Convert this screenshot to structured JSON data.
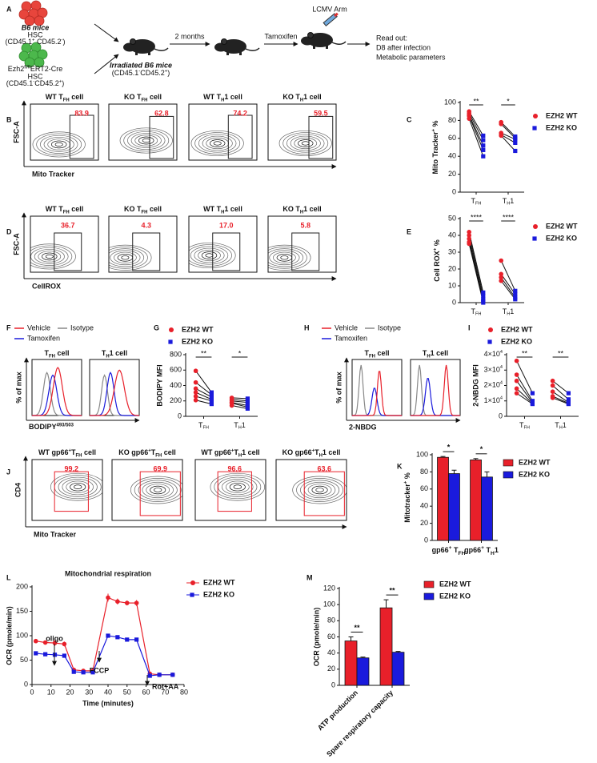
{
  "panel_letters": [
    "A",
    "B",
    "C",
    "D",
    "E",
    "F",
    "G",
    "H",
    "I",
    "J",
    "K",
    "L",
    "M"
  ],
  "schematic": {
    "donors": [
      {
        "name": "B6 mice",
        "lines": [
          "HSC",
          [
            "(CD45.1",
            {
              "sup": "+"
            },
            " CD45.2",
            {
              "sup": "-"
            },
            ")"
          ]
        ]
      },
      {
        "name": [
          "Ezh2",
          {
            "sup": "fl/fl"
          },
          "ERT2-Cre"
        ],
        "lines": [
          "HSC",
          [
            "(CD45.1",
            {
              "sup": "-"
            },
            "CD45.2",
            {
              "sup": "+"
            },
            ")"
          ]
        ]
      }
    ],
    "recipient": {
      "name": "Irradiated B6 mice",
      "line": [
        "(CD45.1",
        {
          "sup": "-"
        },
        "CD45.2",
        {
          "sup": "+"
        },
        ")"
      ]
    },
    "steps": [
      "2 months",
      "Tamoxifen"
    ],
    "infection": "LCMV Arm",
    "readout": [
      "Read out:",
      "D8 after infection",
      "Metabolic parameters"
    ]
  },
  "flow_panels": [
    {
      "y_label": "FSC-A",
      "x_label": "Mito Tracker",
      "gate_color": "#222222",
      "plots": [
        {
          "title": [
            "WT T",
            {
              "sub": "FH"
            },
            " cell"
          ],
          "percent": "83.9"
        },
        {
          "title": [
            "KO T",
            {
              "sub": "FH"
            },
            " cell"
          ],
          "percent": "62.8"
        },
        {
          "title": [
            "WT T",
            {
              "sub": "H"
            },
            "1 cell"
          ],
          "percent": "74.2"
        },
        {
          "title": [
            "KO T",
            {
              "sub": "H"
            },
            "1 cell"
          ],
          "percent": "59.5"
        }
      ]
    },
    {
      "y_label": "FSC-A",
      "x_label": "CellROX",
      "gate_color": "#222222",
      "plots": [
        {
          "title": [
            "WT T",
            {
              "sub": "FH"
            },
            " cell"
          ],
          "percent": "36.7"
        },
        {
          "title": [
            "KO T",
            {
              "sub": "FH"
            },
            " cell"
          ],
          "percent": "4.3"
        },
        {
          "title": [
            "WT T",
            {
              "sub": "H"
            },
            "1 cell"
          ],
          "percent": "17.0"
        },
        {
          "title": [
            "KO T",
            {
              "sub": "H"
            },
            "1 cell"
          ],
          "percent": "5.8"
        }
      ]
    },
    {
      "y_label": "CD4",
      "x_label": "Mito Tracker",
      "gate_color": "#e8202a",
      "plots": [
        {
          "title": [
            "WT gp66",
            {
              "sup": "+"
            },
            "T",
            {
              "sub": "FH"
            },
            " cell"
          ],
          "percent": "99.2"
        },
        {
          "title": [
            "KO gp66",
            {
              "sup": "+"
            },
            "T",
            {
              "sub": "FH"
            },
            " cell"
          ],
          "percent": "69.9"
        },
        {
          "title": [
            "WT gp66",
            {
              "sup": "+"
            },
            "T",
            {
              "sub": "H"
            },
            "1 cell"
          ],
          "percent": "96.6"
        },
        {
          "title": [
            "KO gp66",
            {
              "sup": "+"
            },
            "T",
            {
              "sub": "H"
            },
            "1 cell"
          ],
          "percent": "63.6"
        }
      ]
    }
  ],
  "histogram_panels": [
    {
      "legend": [
        {
          "name": "Vehicle",
          "color": "#e8202a"
        },
        {
          "name": "Isotype",
          "color": "#888888"
        },
        {
          "name": "Tamoxifen",
          "color": "#1a1adc"
        }
      ],
      "titles": [
        [
          "T",
          {
            "sub": "FH"
          },
          " cell"
        ],
        [
          "T",
          {
            "sub": "H"
          },
          "1 cell"
        ]
      ],
      "y_label": "% of max",
      "x_label": [
        "BODIPY",
        {
          "sup": "493/503"
        }
      ]
    },
    {
      "legend": [
        {
          "name": "Vehicle",
          "color": "#e8202a"
        },
        {
          "name": "Isotype",
          "color": "#888888"
        },
        {
          "name": "Tamoxifen",
          "color": "#1a1adc"
        }
      ],
      "titles": [
        [
          "T",
          {
            "sub": "FH"
          },
          " cell"
        ],
        [
          "T",
          {
            "sub": "H"
          },
          "1 cell"
        ]
      ],
      "y_label": "% of max",
      "x_label": "2-NBDG"
    }
  ],
  "chart_data": [
    {
      "type": "paired",
      "y_label": [
        "Mito Tracker",
        {
          "sup": "+"
        },
        " %"
      ],
      "categories": [
        [
          "T",
          {
            "sub": "FH"
          }
        ],
        [
          "T",
          {
            "sub": "H"
          },
          "1"
        ]
      ],
      "significance": [
        "**",
        "*"
      ],
      "ylim": [
        0,
        100
      ],
      "yticks": [
        0,
        20,
        40,
        60,
        80,
        100
      ],
      "series": [
        {
          "name": "EZH2 WT",
          "color": "#e8202a",
          "marker": "circle",
          "values": [
            [
              90,
              88,
              86,
              85,
              82
            ],
            [
              78,
              76,
              66,
              64,
              63
            ]
          ]
        },
        {
          "name": "EZH2 KO",
          "color": "#1a1adc",
          "marker": "square",
          "values": [
            [
              63,
              58,
              52,
              47,
              40
            ],
            [
              62,
              60,
              59,
              55,
              46
            ]
          ]
        }
      ]
    },
    {
      "type": "paired",
      "y_label": [
        "Cell ROX",
        {
          "sup": "+"
        },
        " %"
      ],
      "categories": [
        [
          "T",
          {
            "sub": "FH"
          }
        ],
        [
          "T",
          {
            "sub": "H"
          },
          "1"
        ]
      ],
      "significance": [
        "****",
        "****"
      ],
      "ylim": [
        0,
        50
      ],
      "yticks": [
        0,
        10,
        20,
        30,
        40,
        50
      ],
      "series": [
        {
          "name": "EZH2 WT",
          "color": "#e8202a",
          "marker": "circle",
          "values": [
            [
              42,
              40,
              38,
              36,
              35
            ],
            [
              25,
              17,
              15,
              13
            ]
          ]
        },
        {
          "name": "EZH2 KO",
          "color": "#1a1adc",
          "marker": "square",
          "values": [
            [
              6,
              4,
              2,
              1,
              0
            ],
            [
              7,
              5,
              3,
              2
            ]
          ]
        }
      ]
    },
    {
      "type": "paired",
      "y_label": "BODIPY MFI",
      "categories": [
        [
          "T",
          {
            "sub": "FH"
          }
        ],
        [
          "T",
          {
            "sub": "H"
          },
          "1"
        ]
      ],
      "significance": [
        "**",
        "*"
      ],
      "ylim": [
        0,
        800
      ],
      "yticks": [
        0,
        200,
        400,
        600,
        800
      ],
      "series": [
        {
          "name": "EZH2 WT",
          "color": "#e8202a",
          "marker": "circle",
          "values": [
            [
              590,
              440,
              360,
              310,
              260,
              210
            ],
            [
              240,
              220,
              200,
              180,
              170,
              140
            ]
          ]
        },
        {
          "name": "EZH2 KO",
          "color": "#1a1adc",
          "marker": "square",
          "values": [
            [
              310,
              280,
              250,
              220,
              200,
              160
            ],
            [
              230,
              200,
              180,
              140,
              120,
              100
            ]
          ]
        }
      ]
    },
    {
      "type": "paired",
      "y_label": "2-NBDG MFI",
      "categories": [
        [
          "T",
          {
            "sub": "FH"
          }
        ],
        [
          "T",
          {
            "sub": "H"
          },
          "1"
        ]
      ],
      "significance": [
        "**",
        "**"
      ],
      "ylim": [
        0,
        40000
      ],
      "yticks": [
        0,
        {
          "value": 10000,
          "label": [
            "1×10",
            {
              "sup": "4"
            }
          ]
        },
        {
          "value": 20000,
          "label": [
            "2×10",
            {
              "sup": "4"
            }
          ]
        },
        {
          "value": 30000,
          "label": [
            "3×10",
            {
              "sup": "4"
            }
          ]
        },
        {
          "value": 40000,
          "label": [
            "4×10",
            {
              "sup": "4"
            }
          ]
        }
      ],
      "series": [
        {
          "name": "EZH2 WT",
          "color": "#e8202a",
          "marker": "circle",
          "values": [
            [
              36000,
              27000,
              23000,
              18000,
              15000
            ],
            [
              23000,
              20000,
              16000,
              13000,
              12000
            ]
          ]
        },
        {
          "name": "EZH2 KO",
          "color": "#1a1adc",
          "marker": "square",
          "values": [
            [
              15000,
              10000,
              9000,
              8500,
              8000
            ],
            [
              15000,
              11000,
              9000,
              8500,
              8000
            ]
          ]
        }
      ]
    },
    {
      "type": "bar",
      "y_label": [
        "Mitotracker",
        {
          "sup": "+"
        },
        " %"
      ],
      "categories": [
        [
          "gp66",
          {
            "sup": "+"
          },
          " T",
          {
            "sub": "FH"
          }
        ],
        [
          "gp66",
          {
            "sup": "+"
          },
          " T",
          {
            "sub": "H"
          },
          "1"
        ]
      ],
      "significance": [
        "*",
        "*"
      ],
      "ylim": [
        0,
        100
      ],
      "yticks": [
        0,
        20,
        40,
        60,
        80,
        100
      ],
      "series": [
        {
          "name": "EZH2 WT",
          "color": "#e8202a",
          "values": [
            97,
            94
          ],
          "errors": [
            1,
            1.5
          ]
        },
        {
          "name": "EZH2 KO",
          "color": "#1a1adc",
          "values": [
            78,
            74
          ],
          "errors": [
            4,
            6
          ]
        }
      ]
    },
    {
      "type": "line",
      "title": "Mitochondrial respiration",
      "x_label": "Time (minutes)",
      "y_label": "OCR (pmole/min)",
      "xlim": [
        0,
        80
      ],
      "xticks": [
        0,
        10,
        20,
        30,
        40,
        50,
        60,
        70,
        80
      ],
      "ylim": [
        0,
        200
      ],
      "yticks": [
        0,
        50,
        100,
        150,
        200
      ],
      "x": [
        2,
        7,
        12,
        17,
        22,
        27,
        32,
        40,
        45,
        50,
        55,
        62,
        67,
        74
      ],
      "annotations": [
        "oligo",
        "FCCP",
        "Rot+AA"
      ],
      "series": [
        {
          "name": "EZH2 WT",
          "color": "#e8202a",
          "marker": "circle",
          "values": [
            89,
            86,
            85,
            83,
            30,
            28,
            28,
            178,
            170,
            167,
            167,
            22,
            20,
            20
          ],
          "errors": [
            3,
            3,
            6,
            5,
            2,
            2,
            2,
            8,
            6,
            5,
            6,
            3,
            2,
            2
          ]
        },
        {
          "name": "EZH2 KO",
          "color": "#1a1adc",
          "marker": "square",
          "values": [
            64,
            62,
            61,
            59,
            26,
            25,
            25,
            100,
            97,
            92,
            92,
            18,
            20,
            20
          ],
          "errors": [
            2,
            2,
            2,
            2,
            2,
            2,
            2,
            3,
            3,
            3,
            3,
            2,
            2,
            2
          ]
        }
      ]
    },
    {
      "type": "bar",
      "y_label": "OCR (pmole/min)",
      "categories": [
        "ATP production",
        "Spare respiratory capacity"
      ],
      "significance": [
        "**",
        "**"
      ],
      "ylim": [
        0,
        120
      ],
      "yticks": [
        0,
        20,
        40,
        60,
        80,
        100,
        120
      ],
      "series": [
        {
          "name": "EZH2 WT",
          "color": "#e8202a",
          "values": [
            55,
            96
          ],
          "errors": [
            5,
            10
          ]
        },
        {
          "name": "EZH2 KO",
          "color": "#1a1adc",
          "values": [
            34,
            41
          ],
          "errors": [
            1,
            1
          ]
        }
      ]
    }
  ]
}
